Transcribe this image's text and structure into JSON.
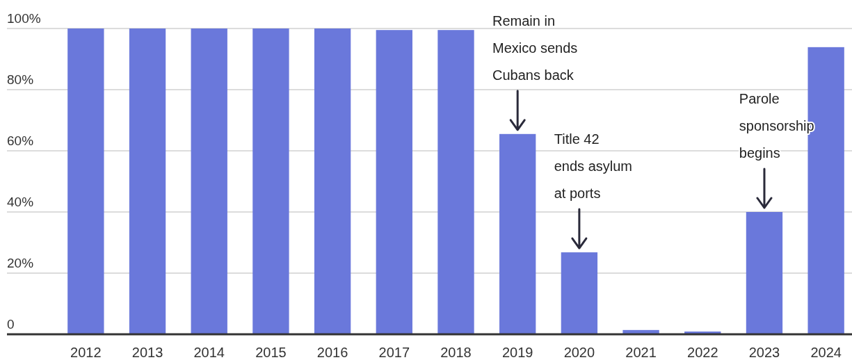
{
  "chart_data": {
    "type": "bar",
    "categories": [
      "2012",
      "2013",
      "2014",
      "2015",
      "2016",
      "2017",
      "2018",
      "2019",
      "2020",
      "2021",
      "2022",
      "2023",
      "2024"
    ],
    "values": [
      100,
      100,
      100,
      100,
      100,
      99.5,
      99.5,
      65.5,
      26.8,
      1.4,
      0.9,
      40,
      93.9
    ],
    "color": "#6a78db",
    "ylim": [
      0,
      100
    ],
    "yticks": [
      {
        "value": 0,
        "label": "0"
      },
      {
        "value": 20,
        "label": "20%"
      },
      {
        "value": 40,
        "label": "40%"
      },
      {
        "value": 60,
        "label": "60%"
      },
      {
        "value": 80,
        "label": "80%"
      },
      {
        "value": 100,
        "label": "100%"
      }
    ],
    "grid": "y",
    "annotations": [
      {
        "text": "Remain in\nMexico sends\nCubans back",
        "x": "2019",
        "y": 65.5
      },
      {
        "text": "Title 42\nends asylum\nat ports",
        "x": "2020",
        "y": 26.8
      },
      {
        "text": "Parole\nsponsorship\nbegins",
        "x": "2023",
        "y": 40
      }
    ]
  }
}
